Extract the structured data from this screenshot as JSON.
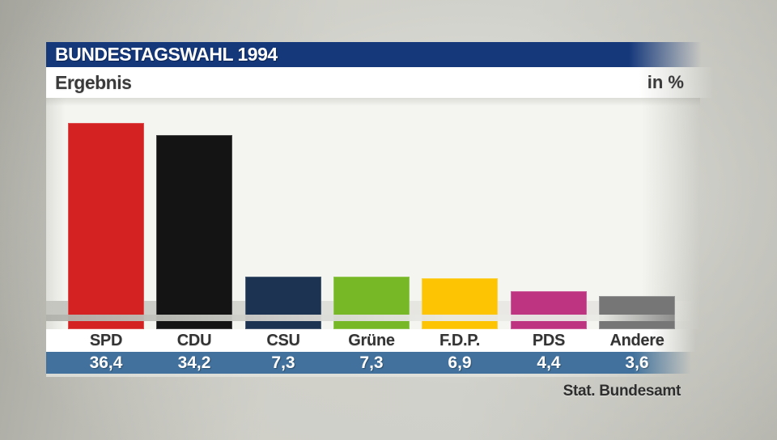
{
  "header": {
    "title": "BUNDESTAGSWAHL 1994",
    "section_label": "Ergebnis",
    "unit_label": "in %"
  },
  "footer": {
    "source": "Stat. Bundesamt"
  },
  "colors": {
    "title_bar": "#15387b",
    "value_band": "#41719c",
    "label_text": "#333333",
    "value_text": "#ffffff"
  },
  "chart_data": {
    "type": "bar",
    "title": "BUNDESTAGSWAHL 1994",
    "subtitle": "Ergebnis",
    "unit": "in %",
    "categories": [
      "SPD",
      "CDU",
      "CSU",
      "Grüne",
      "F.D.P.",
      "PDS",
      "Andere"
    ],
    "values": [
      36.4,
      34.2,
      7.3,
      7.3,
      6.9,
      4.4,
      3.6
    ],
    "value_labels": [
      "36,4",
      "34,2",
      "7,3",
      "7,3",
      "6,9",
      "4,4",
      "3,6"
    ],
    "bar_colors": [
      "#d42121",
      "#141414",
      "#1c3351",
      "#77b827",
      "#fcc402",
      "#bf3480",
      "#767676"
    ],
    "ylim": [
      0,
      40
    ],
    "grid": false,
    "legend": "none",
    "source": "Stat. Bundesamt"
  }
}
